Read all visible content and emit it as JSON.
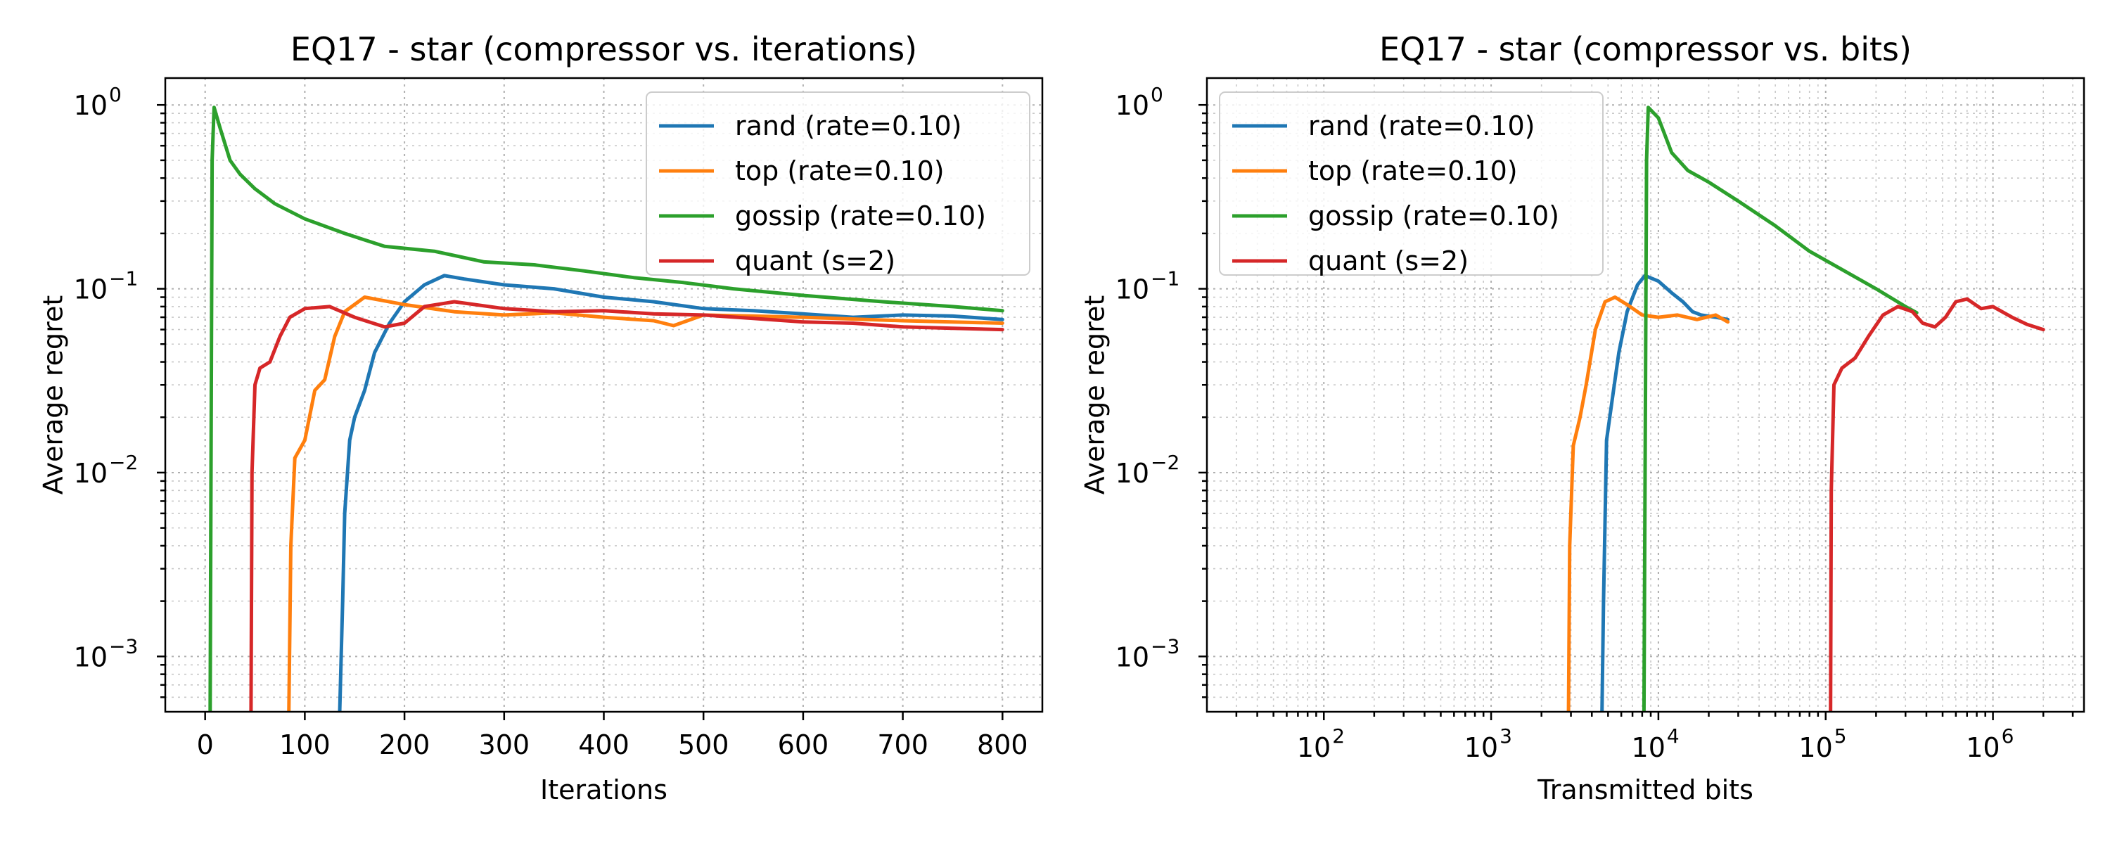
{
  "chart_data": [
    {
      "type": "line",
      "title": "EQ17 - star (compressor vs. iterations)",
      "xlabel": "Iterations",
      "ylabel": "Average regret",
      "xscale": "linear",
      "yscale": "log",
      "xlim": [
        -40,
        840
      ],
      "ylim": [
        0.0005,
        1.4
      ],
      "x_ticks": [
        0,
        100,
        200,
        300,
        400,
        500,
        600,
        700,
        800
      ],
      "x_tick_labels": [
        "0",
        "100",
        "200",
        "300",
        "400",
        "500",
        "600",
        "700",
        "800"
      ],
      "y_ticks": [
        0.001,
        0.01,
        0.1,
        1
      ],
      "y_tick_labels": [
        "10",
        "10",
        "10",
        "10"
      ],
      "y_tick_exponents": [
        "−3",
        "−2",
        "−1",
        "0"
      ],
      "grid": "major and minor, dotted",
      "legend_position": "upper right",
      "series": [
        {
          "name": "rand (rate=0.10)",
          "color": "#1f77b4",
          "points": [
            [
              135,
              0.0005
            ],
            [
              138,
              0.002
            ],
            [
              140,
              0.006
            ],
            [
              145,
              0.015
            ],
            [
              150,
              0.02
            ],
            [
              160,
              0.028
            ],
            [
              170,
              0.045
            ],
            [
              185,
              0.065
            ],
            [
              200,
              0.085
            ],
            [
              220,
              0.105
            ],
            [
              240,
              0.118
            ],
            [
              260,
              0.113
            ],
            [
              300,
              0.105
            ],
            [
              350,
              0.1
            ],
            [
              400,
              0.09
            ],
            [
              450,
              0.085
            ],
            [
              500,
              0.078
            ],
            [
              550,
              0.076
            ],
            [
              600,
              0.073
            ],
            [
              650,
              0.07
            ],
            [
              700,
              0.072
            ],
            [
              750,
              0.071
            ],
            [
              800,
              0.068
            ]
          ]
        },
        {
          "name": "top (rate=0.10)",
          "color": "#ff7f0e",
          "points": [
            [
              84,
              0.0005
            ],
            [
              86,
              0.004
            ],
            [
              90,
              0.012
            ],
            [
              100,
              0.015
            ],
            [
              110,
              0.028
            ],
            [
              120,
              0.032
            ],
            [
              130,
              0.055
            ],
            [
              140,
              0.075
            ],
            [
              160,
              0.09
            ],
            [
              200,
              0.082
            ],
            [
              250,
              0.075
            ],
            [
              300,
              0.072
            ],
            [
              350,
              0.074
            ],
            [
              400,
              0.07
            ],
            [
              450,
              0.067
            ],
            [
              470,
              0.063
            ],
            [
              500,
              0.072
            ],
            [
              550,
              0.071
            ],
            [
              600,
              0.07
            ],
            [
              700,
              0.067
            ],
            [
              800,
              0.065
            ]
          ]
        },
        {
          "name": "gossip (rate=0.10)",
          "color": "#2ca02c",
          "points": [
            [
              5,
              0.0005
            ],
            [
              7,
              0.5
            ],
            [
              9,
              0.97
            ],
            [
              15,
              0.75
            ],
            [
              25,
              0.5
            ],
            [
              35,
              0.42
            ],
            [
              50,
              0.35
            ],
            [
              70,
              0.29
            ],
            [
              100,
              0.24
            ],
            [
              140,
              0.2
            ],
            [
              180,
              0.17
            ],
            [
              230,
              0.16
            ],
            [
              280,
              0.14
            ],
            [
              330,
              0.135
            ],
            [
              380,
              0.125
            ],
            [
              430,
              0.115
            ],
            [
              480,
              0.108
            ],
            [
              530,
              0.1
            ],
            [
              600,
              0.092
            ],
            [
              680,
              0.085
            ],
            [
              750,
              0.08
            ],
            [
              800,
              0.076
            ]
          ]
        },
        {
          "name": "quant (s=2)",
          "color": "#d62728",
          "points": [
            [
              46,
              0.0005
            ],
            [
              47,
              0.01
            ],
            [
              50,
              0.03
            ],
            [
              55,
              0.037
            ],
            [
              65,
              0.04
            ],
            [
              75,
              0.055
            ],
            [
              85,
              0.07
            ],
            [
              100,
              0.078
            ],
            [
              125,
              0.08
            ],
            [
              150,
              0.07
            ],
            [
              180,
              0.062
            ],
            [
              200,
              0.065
            ],
            [
              220,
              0.08
            ],
            [
              250,
              0.085
            ],
            [
              300,
              0.078
            ],
            [
              350,
              0.075
            ],
            [
              400,
              0.076
            ],
            [
              450,
              0.073
            ],
            [
              500,
              0.072
            ],
            [
              550,
              0.069
            ],
            [
              600,
              0.066
            ],
            [
              650,
              0.065
            ],
            [
              700,
              0.062
            ],
            [
              750,
              0.061
            ],
            [
              800,
              0.06
            ]
          ]
        }
      ]
    },
    {
      "type": "line",
      "title": "EQ17 - star (compressor vs. bits)",
      "xlabel": "Transmitted bits",
      "ylabel": "Average regret",
      "xscale": "log",
      "yscale": "log",
      "xlim": [
        20,
        3500000
      ],
      "ylim": [
        0.0005,
        1.4
      ],
      "x_ticks": [
        100,
        1000,
        10000,
        100000,
        1000000
      ],
      "x_tick_labels": [
        "10",
        "10",
        "10",
        "10",
        "10"
      ],
      "x_tick_exponents": [
        "2",
        "3",
        "4",
        "5",
        "6"
      ],
      "y_ticks": [
        0.001,
        0.01,
        0.1,
        1
      ],
      "y_tick_labels": [
        "10",
        "10",
        "10",
        "10"
      ],
      "y_tick_exponents": [
        "−3",
        "−2",
        "−1",
        "0"
      ],
      "grid": "major and minor, dotted",
      "legend_position": "upper left",
      "series": [
        {
          "name": "rand (rate=0.10)",
          "color": "#1f77b4",
          "points": [
            [
              4600,
              0.0005
            ],
            [
              4700,
              0.002
            ],
            [
              4900,
              0.015
            ],
            [
              5300,
              0.025
            ],
            [
              5800,
              0.045
            ],
            [
              6500,
              0.075
            ],
            [
              7500,
              0.105
            ],
            [
              8300,
              0.118
            ],
            [
              10000,
              0.11
            ],
            [
              12000,
              0.095
            ],
            [
              14000,
              0.085
            ],
            [
              16000,
              0.075
            ],
            [
              18000,
              0.072
            ],
            [
              22000,
              0.07
            ],
            [
              26000,
              0.068
            ]
          ]
        },
        {
          "name": "top (rate=0.10)",
          "color": "#ff7f0e",
          "points": [
            [
              2900,
              0.0005
            ],
            [
              2950,
              0.004
            ],
            [
              3100,
              0.014
            ],
            [
              3400,
              0.02
            ],
            [
              3700,
              0.03
            ],
            [
              4200,
              0.06
            ],
            [
              4800,
              0.085
            ],
            [
              5500,
              0.09
            ],
            [
              6500,
              0.082
            ],
            [
              8000,
              0.072
            ],
            [
              10000,
              0.07
            ],
            [
              13000,
              0.072
            ],
            [
              17000,
              0.068
            ],
            [
              22000,
              0.072
            ],
            [
              26000,
              0.066
            ]
          ]
        },
        {
          "name": "gossip (rate=0.10)",
          "color": "#2ca02c",
          "points": [
            [
              8200,
              0.0005
            ],
            [
              8500,
              0.5
            ],
            [
              8700,
              0.97
            ],
            [
              10000,
              0.85
            ],
            [
              12000,
              0.55
            ],
            [
              15000,
              0.44
            ],
            [
              20000,
              0.38
            ],
            [
              30000,
              0.3
            ],
            [
              50000,
              0.22
            ],
            [
              80000,
              0.16
            ],
            [
              120000,
              0.13
            ],
            [
              200000,
              0.1
            ],
            [
              300000,
              0.08
            ],
            [
              350000,
              0.074
            ]
          ]
        },
        {
          "name": "quant (s=2)",
          "color": "#d62728",
          "points": [
            [
              107000,
              0.0005
            ],
            [
              108000,
              0.008
            ],
            [
              112000,
              0.03
            ],
            [
              125000,
              0.037
            ],
            [
              150000,
              0.042
            ],
            [
              180000,
              0.055
            ],
            [
              220000,
              0.072
            ],
            [
              270000,
              0.08
            ],
            [
              330000,
              0.075
            ],
            [
              380000,
              0.065
            ],
            [
              450000,
              0.062
            ],
            [
              520000,
              0.07
            ],
            [
              600000,
              0.085
            ],
            [
              700000,
              0.088
            ],
            [
              850000,
              0.078
            ],
            [
              1000000,
              0.08
            ],
            [
              1300000,
              0.07
            ],
            [
              1600000,
              0.064
            ],
            [
              2000000,
              0.06
            ]
          ]
        }
      ]
    }
  ]
}
